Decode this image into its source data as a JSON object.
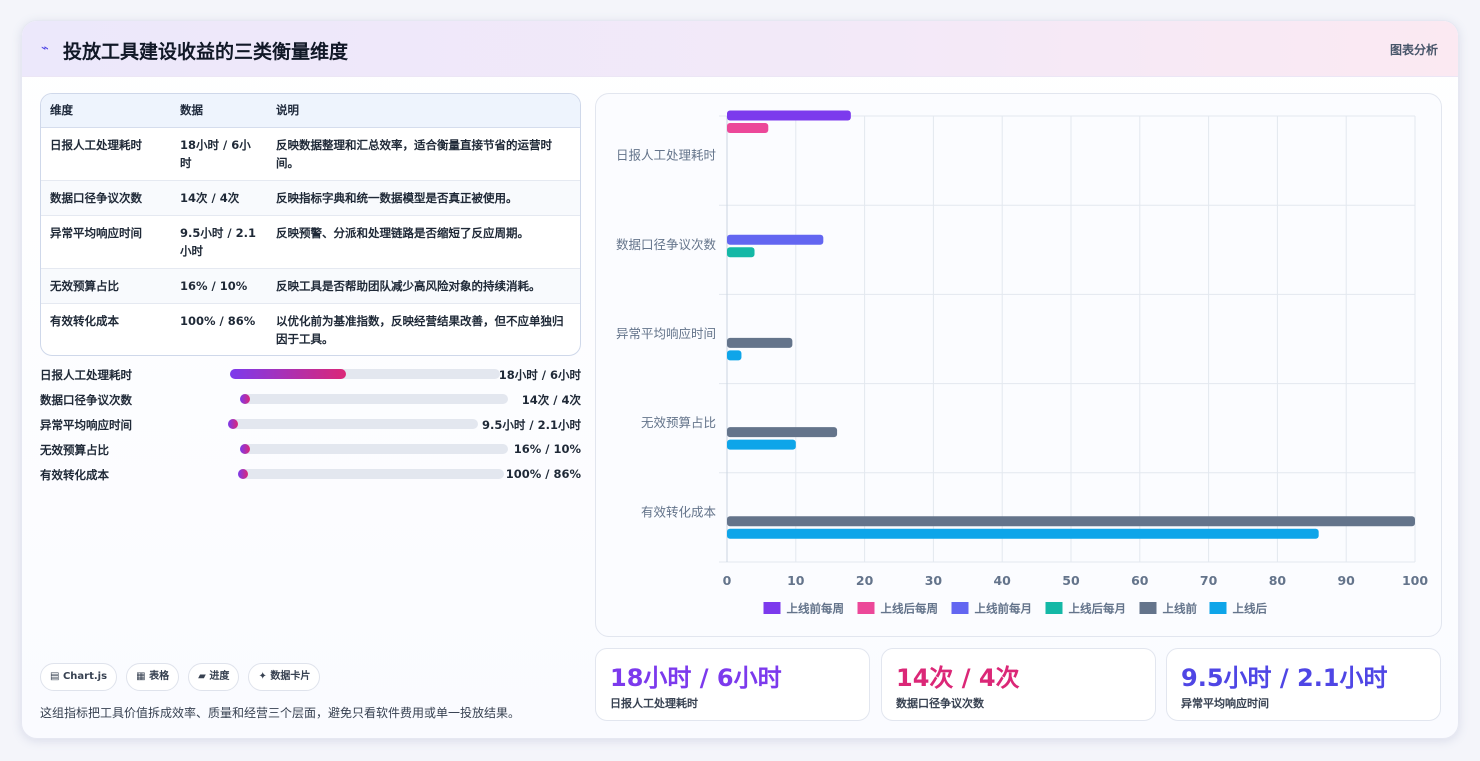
{
  "header": {
    "icon": "sparkline-icon",
    "title": "投放工具建设收益的三类衡量维度",
    "tag": "图表分析"
  },
  "table": {
    "headers": [
      "维度",
      "数据",
      "说明"
    ],
    "rows": [
      [
        "日报人工处理耗时",
        "18小时 / 6小时",
        "反映数据整理和汇总效率，适合衡量直接节省的运营时间。"
      ],
      [
        "数据口径争议次数",
        "14次 / 4次",
        "反映指标字典和统一数据模型是否真正被使用。"
      ],
      [
        "异常平均响应时间",
        "9.5小时 / 2.1小时",
        "反映预警、分派和处理链路是否缩短了反应周期。"
      ],
      [
        "无效预算占比",
        "16% / 10%",
        "反映工具是否帮助团队减少高风险对象的持续消耗。"
      ],
      [
        "有效转化成本",
        "100% / 86%",
        "以优化前为基准指数，反映经营结果改善，但不应单独归因于工具。"
      ]
    ]
  },
  "progress": [
    {
      "label": "日报人工处理耗时",
      "value": "18小时 / 6小时",
      "level": 0.43
    },
    {
      "label": "数据口径争议次数",
      "value": "14次 / 4次",
      "level": 0.02
    },
    {
      "label": "异常平均响应时间",
      "value": "9.5小时 / 2.1小时",
      "level": 0.02
    },
    {
      "label": "无效预算占比",
      "value": "16% / 10%",
      "level": 0.02
    },
    {
      "label": "有效转化成本",
      "value": "100% / 86%",
      "level": 0.02
    }
  ],
  "chips": [
    {
      "icon": "chart-icon",
      "label": "Chart.js"
    },
    {
      "icon": "table-icon",
      "label": "表格"
    },
    {
      "icon": "progress-icon",
      "label": "进度"
    },
    {
      "icon": "card-icon",
      "label": "数据卡片"
    }
  ],
  "note": "这组指标把工具价值拆成效率、质量和经营三个层面，避免只看软件费用或单一投放结果。",
  "stats": [
    {
      "value": "18小时 / 6小时",
      "label": "日报人工处理耗时",
      "color": "#7c3aed"
    },
    {
      "value": "14次 / 4次",
      "label": "数据口径争议次数",
      "color": "#db2777"
    },
    {
      "value": "9.5小时 / 2.1小时",
      "label": "异常平均响应时间",
      "color": "#4f46e5"
    }
  ],
  "chart_data": {
    "type": "bar",
    "orientation": "horizontal",
    "categories": [
      "日报人工处理耗时",
      "数据口径争议次数",
      "异常平均响应时间",
      "无效预算占比",
      "有效转化成本"
    ],
    "series": [
      {
        "name": "上线前每周",
        "color": "#7c3aed",
        "values": [
          18,
          null,
          null,
          null,
          null
        ]
      },
      {
        "name": "上线后每周",
        "color": "#ec4899",
        "values": [
          6,
          null,
          null,
          null,
          null
        ]
      },
      {
        "name": "上线前每月",
        "color": "#6366f1",
        "values": [
          null,
          14,
          null,
          null,
          null
        ]
      },
      {
        "name": "上线后每月",
        "color": "#14b8a6",
        "values": [
          null,
          4,
          null,
          null,
          null
        ]
      },
      {
        "name": "上线前",
        "color": "#64748b",
        "values": [
          null,
          null,
          9.5,
          16,
          100
        ]
      },
      {
        "name": "上线后",
        "color": "#0ea5e9",
        "values": [
          null,
          null,
          2.1,
          10,
          86
        ]
      }
    ],
    "xlim": [
      0,
      100
    ],
    "xticks": [
      0,
      10,
      20,
      30,
      40,
      50,
      60,
      70,
      80,
      90,
      100
    ],
    "grid": true,
    "legend": "bottom"
  }
}
